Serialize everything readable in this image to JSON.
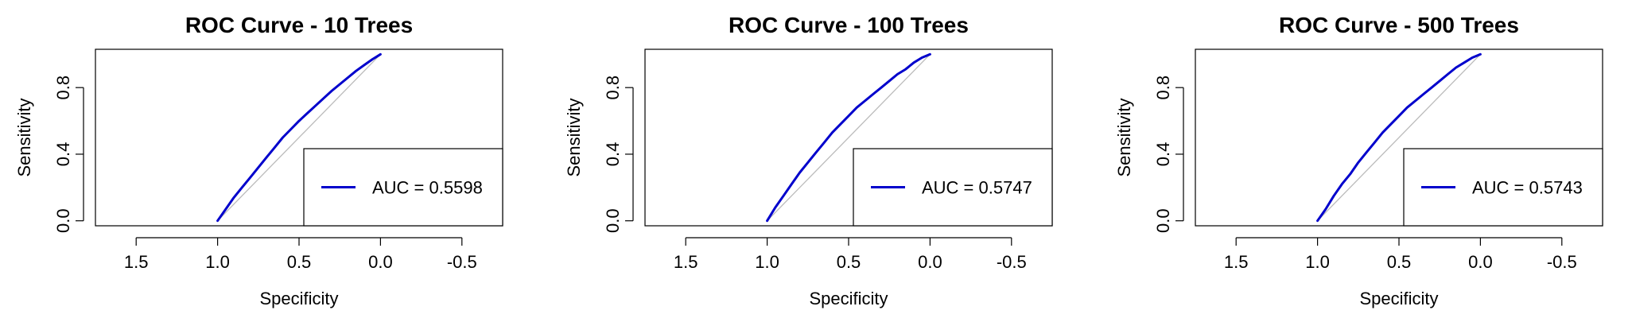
{
  "chart_data": [
    {
      "type": "line",
      "title": "ROC Curve - 10 Trees",
      "xlabel": "Specificity",
      "ylabel": "Sensitivity",
      "x_reversed": true,
      "xlim": [
        1.75,
        -0.75
      ],
      "ylim": [
        -0.03,
        1.03
      ],
      "xticks": [
        1.5,
        1.0,
        0.5,
        0.0,
        -0.5
      ],
      "xtick_labels": [
        "1.5",
        "1.0",
        "0.5",
        "0.0",
        "-0.5"
      ],
      "yticks": [
        0.0,
        0.4,
        0.8
      ],
      "ytick_labels": [
        "0.0",
        "0.4",
        "0.8"
      ],
      "grid": false,
      "legend_position": "bottom-right",
      "legend": [
        "AUC = 0.5598"
      ],
      "reference_line": {
        "x": [
          1,
          0
        ],
        "y": [
          0,
          1
        ],
        "color": "#bbbbbb"
      },
      "series": [
        {
          "color": "#0000cc",
          "x": [
            1.0,
            0.95,
            0.9,
            0.85,
            0.8,
            0.75,
            0.7,
            0.65,
            0.6,
            0.55,
            0.5,
            0.45,
            0.4,
            0.35,
            0.3,
            0.25,
            0.2,
            0.15,
            0.1,
            0.05,
            0.0
          ],
          "y": [
            0.0,
            0.07,
            0.14,
            0.2,
            0.26,
            0.32,
            0.38,
            0.44,
            0.5,
            0.55,
            0.6,
            0.645,
            0.69,
            0.735,
            0.78,
            0.82,
            0.86,
            0.9,
            0.935,
            0.97,
            1.0
          ]
        }
      ]
    },
    {
      "type": "line",
      "title": "ROC Curve - 100 Trees",
      "xlabel": "Specificity",
      "ylabel": "Sensitivity",
      "x_reversed": true,
      "xlim": [
        1.75,
        -0.75
      ],
      "ylim": [
        -0.03,
        1.03
      ],
      "xticks": [
        1.5,
        1.0,
        0.5,
        0.0,
        -0.5
      ],
      "xtick_labels": [
        "1.5",
        "1.0",
        "0.5",
        "0.0",
        "-0.5"
      ],
      "yticks": [
        0.0,
        0.4,
        0.8
      ],
      "ytick_labels": [
        "0.0",
        "0.4",
        "0.8"
      ],
      "grid": false,
      "legend_position": "bottom-right",
      "legend": [
        "AUC = 0.5747"
      ],
      "reference_line": {
        "x": [
          1,
          0
        ],
        "y": [
          0,
          1
        ],
        "color": "#bbbbbb"
      },
      "series": [
        {
          "color": "#0000cc",
          "x": [
            1.0,
            0.95,
            0.9,
            0.85,
            0.8,
            0.75,
            0.7,
            0.65,
            0.6,
            0.55,
            0.5,
            0.45,
            0.4,
            0.35,
            0.3,
            0.25,
            0.2,
            0.15,
            0.1,
            0.05,
            0.0
          ],
          "y": [
            0.0,
            0.08,
            0.15,
            0.22,
            0.29,
            0.35,
            0.41,
            0.47,
            0.53,
            0.58,
            0.63,
            0.68,
            0.72,
            0.76,
            0.8,
            0.84,
            0.88,
            0.91,
            0.95,
            0.98,
            1.0
          ]
        }
      ]
    },
    {
      "type": "line",
      "title": "ROC Curve - 500 Trees",
      "xlabel": "Specificity",
      "ylabel": "Sensitivity",
      "x_reversed": true,
      "xlim": [
        1.75,
        -0.75
      ],
      "ylim": [
        -0.03,
        1.03
      ],
      "xticks": [
        1.5,
        1.0,
        0.5,
        0.0,
        -0.5
      ],
      "xtick_labels": [
        "1.5",
        "1.0",
        "0.5",
        "0.0",
        "-0.5"
      ],
      "yticks": [
        0.0,
        0.4,
        0.8
      ],
      "ytick_labels": [
        "0.0",
        "0.4",
        "0.8"
      ],
      "grid": false,
      "legend_position": "bottom-right",
      "legend": [
        "AUC = 0.5743"
      ],
      "reference_line": {
        "x": [
          1,
          0
        ],
        "y": [
          0,
          1
        ],
        "color": "#bbbbbb"
      },
      "series": [
        {
          "color": "#0000cc",
          "x": [
            1.0,
            0.95,
            0.9,
            0.85,
            0.8,
            0.75,
            0.7,
            0.65,
            0.6,
            0.55,
            0.5,
            0.45,
            0.4,
            0.35,
            0.3,
            0.25,
            0.2,
            0.15,
            0.1,
            0.05,
            0.0
          ],
          "y": [
            0.0,
            0.07,
            0.15,
            0.22,
            0.28,
            0.35,
            0.41,
            0.47,
            0.53,
            0.58,
            0.63,
            0.68,
            0.72,
            0.76,
            0.8,
            0.84,
            0.88,
            0.92,
            0.95,
            0.98,
            1.0
          ]
        }
      ]
    }
  ]
}
